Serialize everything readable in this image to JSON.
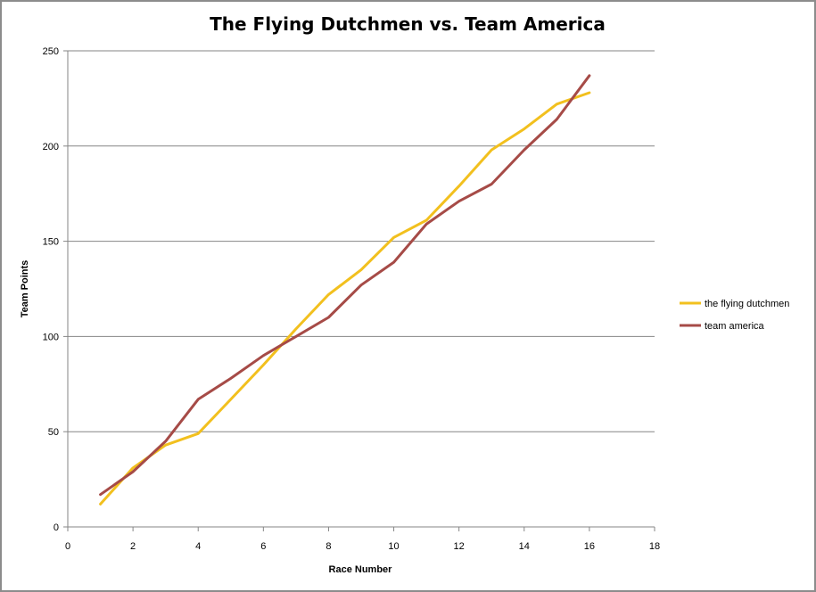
{
  "chart_data": {
    "type": "line",
    "title": "The Flying Dutchmen vs. Team America",
    "xlabel": "Race Number",
    "ylabel": "Team Points",
    "xlim": [
      0,
      18
    ],
    "ylim": [
      0,
      250
    ],
    "xticks": [
      0,
      2,
      4,
      6,
      8,
      10,
      12,
      14,
      16,
      18
    ],
    "yticks": [
      0,
      50,
      100,
      150,
      200,
      250
    ],
    "grid": "horizontal",
    "legend_position": "right",
    "x": [
      1,
      2,
      3,
      4,
      5,
      6,
      7,
      8,
      9,
      10,
      11,
      12,
      13,
      14,
      15,
      16
    ],
    "series": [
      {
        "name": "the flying dutchmen",
        "color": "#f2c01e",
        "values": [
          12,
          31,
          43,
          49,
          67,
          85,
          104,
          122,
          135,
          152,
          161,
          179,
          198,
          209,
          222,
          228
        ]
      },
      {
        "name": "team america",
        "color": "#a64b47",
        "values": [
          17,
          29,
          45,
          67,
          78,
          90,
          100,
          110,
          127,
          139,
          159,
          171,
          180,
          198,
          214,
          237
        ]
      }
    ]
  }
}
